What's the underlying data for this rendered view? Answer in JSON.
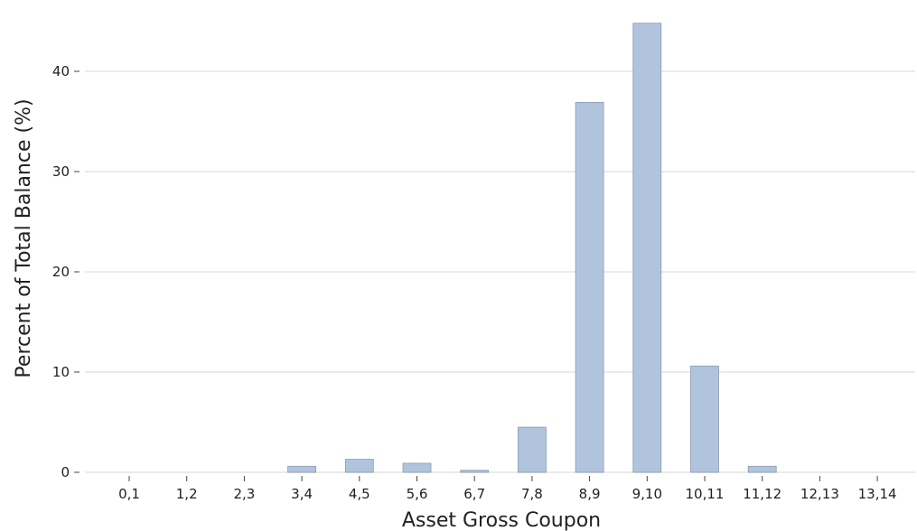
{
  "chart_data": {
    "type": "bar",
    "title": "",
    "xlabel": "Asset Gross Coupon",
    "ylabel": "Percent of Total Balance (%)",
    "categories": [
      "0,1",
      "1,2",
      "2,3",
      "3,4",
      "4,5",
      "5,6",
      "6,7",
      "7,8",
      "8,9",
      "9,10",
      "10,11",
      "11,12",
      "12,13",
      "13,14"
    ],
    "values": [
      0,
      0,
      0,
      0.6,
      1.3,
      0.9,
      0.2,
      4.5,
      36.9,
      44.8,
      10.6,
      0.6,
      0,
      0
    ],
    "ylim": [
      0,
      45
    ],
    "yticks": [
      0,
      10,
      20,
      30,
      40
    ],
    "grid": "horizontal",
    "legend": "none",
    "colors": {
      "bar_fill": "#b0c4de",
      "bar_stroke": "#8a9bb0",
      "grid": "#ebebeb",
      "text": "#222222",
      "tick": "#444444"
    }
  }
}
